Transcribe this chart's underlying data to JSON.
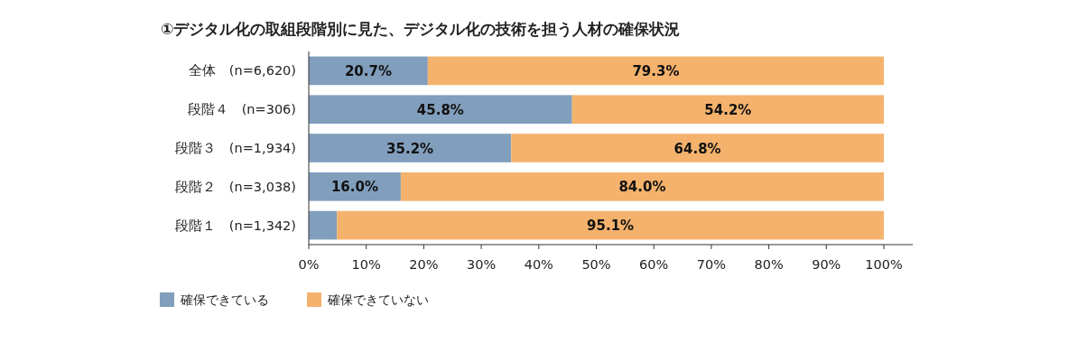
{
  "chart_data": {
    "type": "bar",
    "orientation": "horizontal",
    "stacked": true,
    "title": "①デジタル化の取組段階別に見た、デジタル化の技術を担う人材の確保状況",
    "categories": [
      "全体　(n=6,620)",
      "段階４　(n=306)",
      "段階３　(n=1,934)",
      "段階２　(n=3,038)",
      "段階１　(n=1,342)"
    ],
    "series": [
      {
        "name": "確保できている",
        "color": "#819fbd",
        "values": [
          20.7,
          45.8,
          35.2,
          16.0,
          4.9
        ],
        "value_labels": [
          "20.7%",
          "45.8%",
          "35.2%",
          "16.0%",
          null
        ]
      },
      {
        "name": "確保できていない",
        "color": "#f4b26d",
        "values": [
          79.3,
          54.2,
          64.8,
          84.0,
          95.1
        ],
        "value_labels": [
          "79.3%",
          "54.2%",
          "64.8%",
          "84.0%",
          "95.1%"
        ]
      }
    ],
    "xlim": [
      0,
      100
    ],
    "xticks": [
      {
        "value": 0,
        "label": "0%"
      },
      {
        "value": 10,
        "label": "10%"
      },
      {
        "value": 20,
        "label": "20%"
      },
      {
        "value": 30,
        "label": "30%"
      },
      {
        "value": 40,
        "label": "40%"
      },
      {
        "value": 50,
        "label": "50%"
      },
      {
        "value": 60,
        "label": "60%"
      },
      {
        "value": 70,
        "label": "70%"
      },
      {
        "value": 80,
        "label": "80%"
      },
      {
        "value": 90,
        "label": "90%"
      },
      {
        "value": 100,
        "label": "100%"
      }
    ],
    "legend": "bottom left",
    "grid": false
  }
}
